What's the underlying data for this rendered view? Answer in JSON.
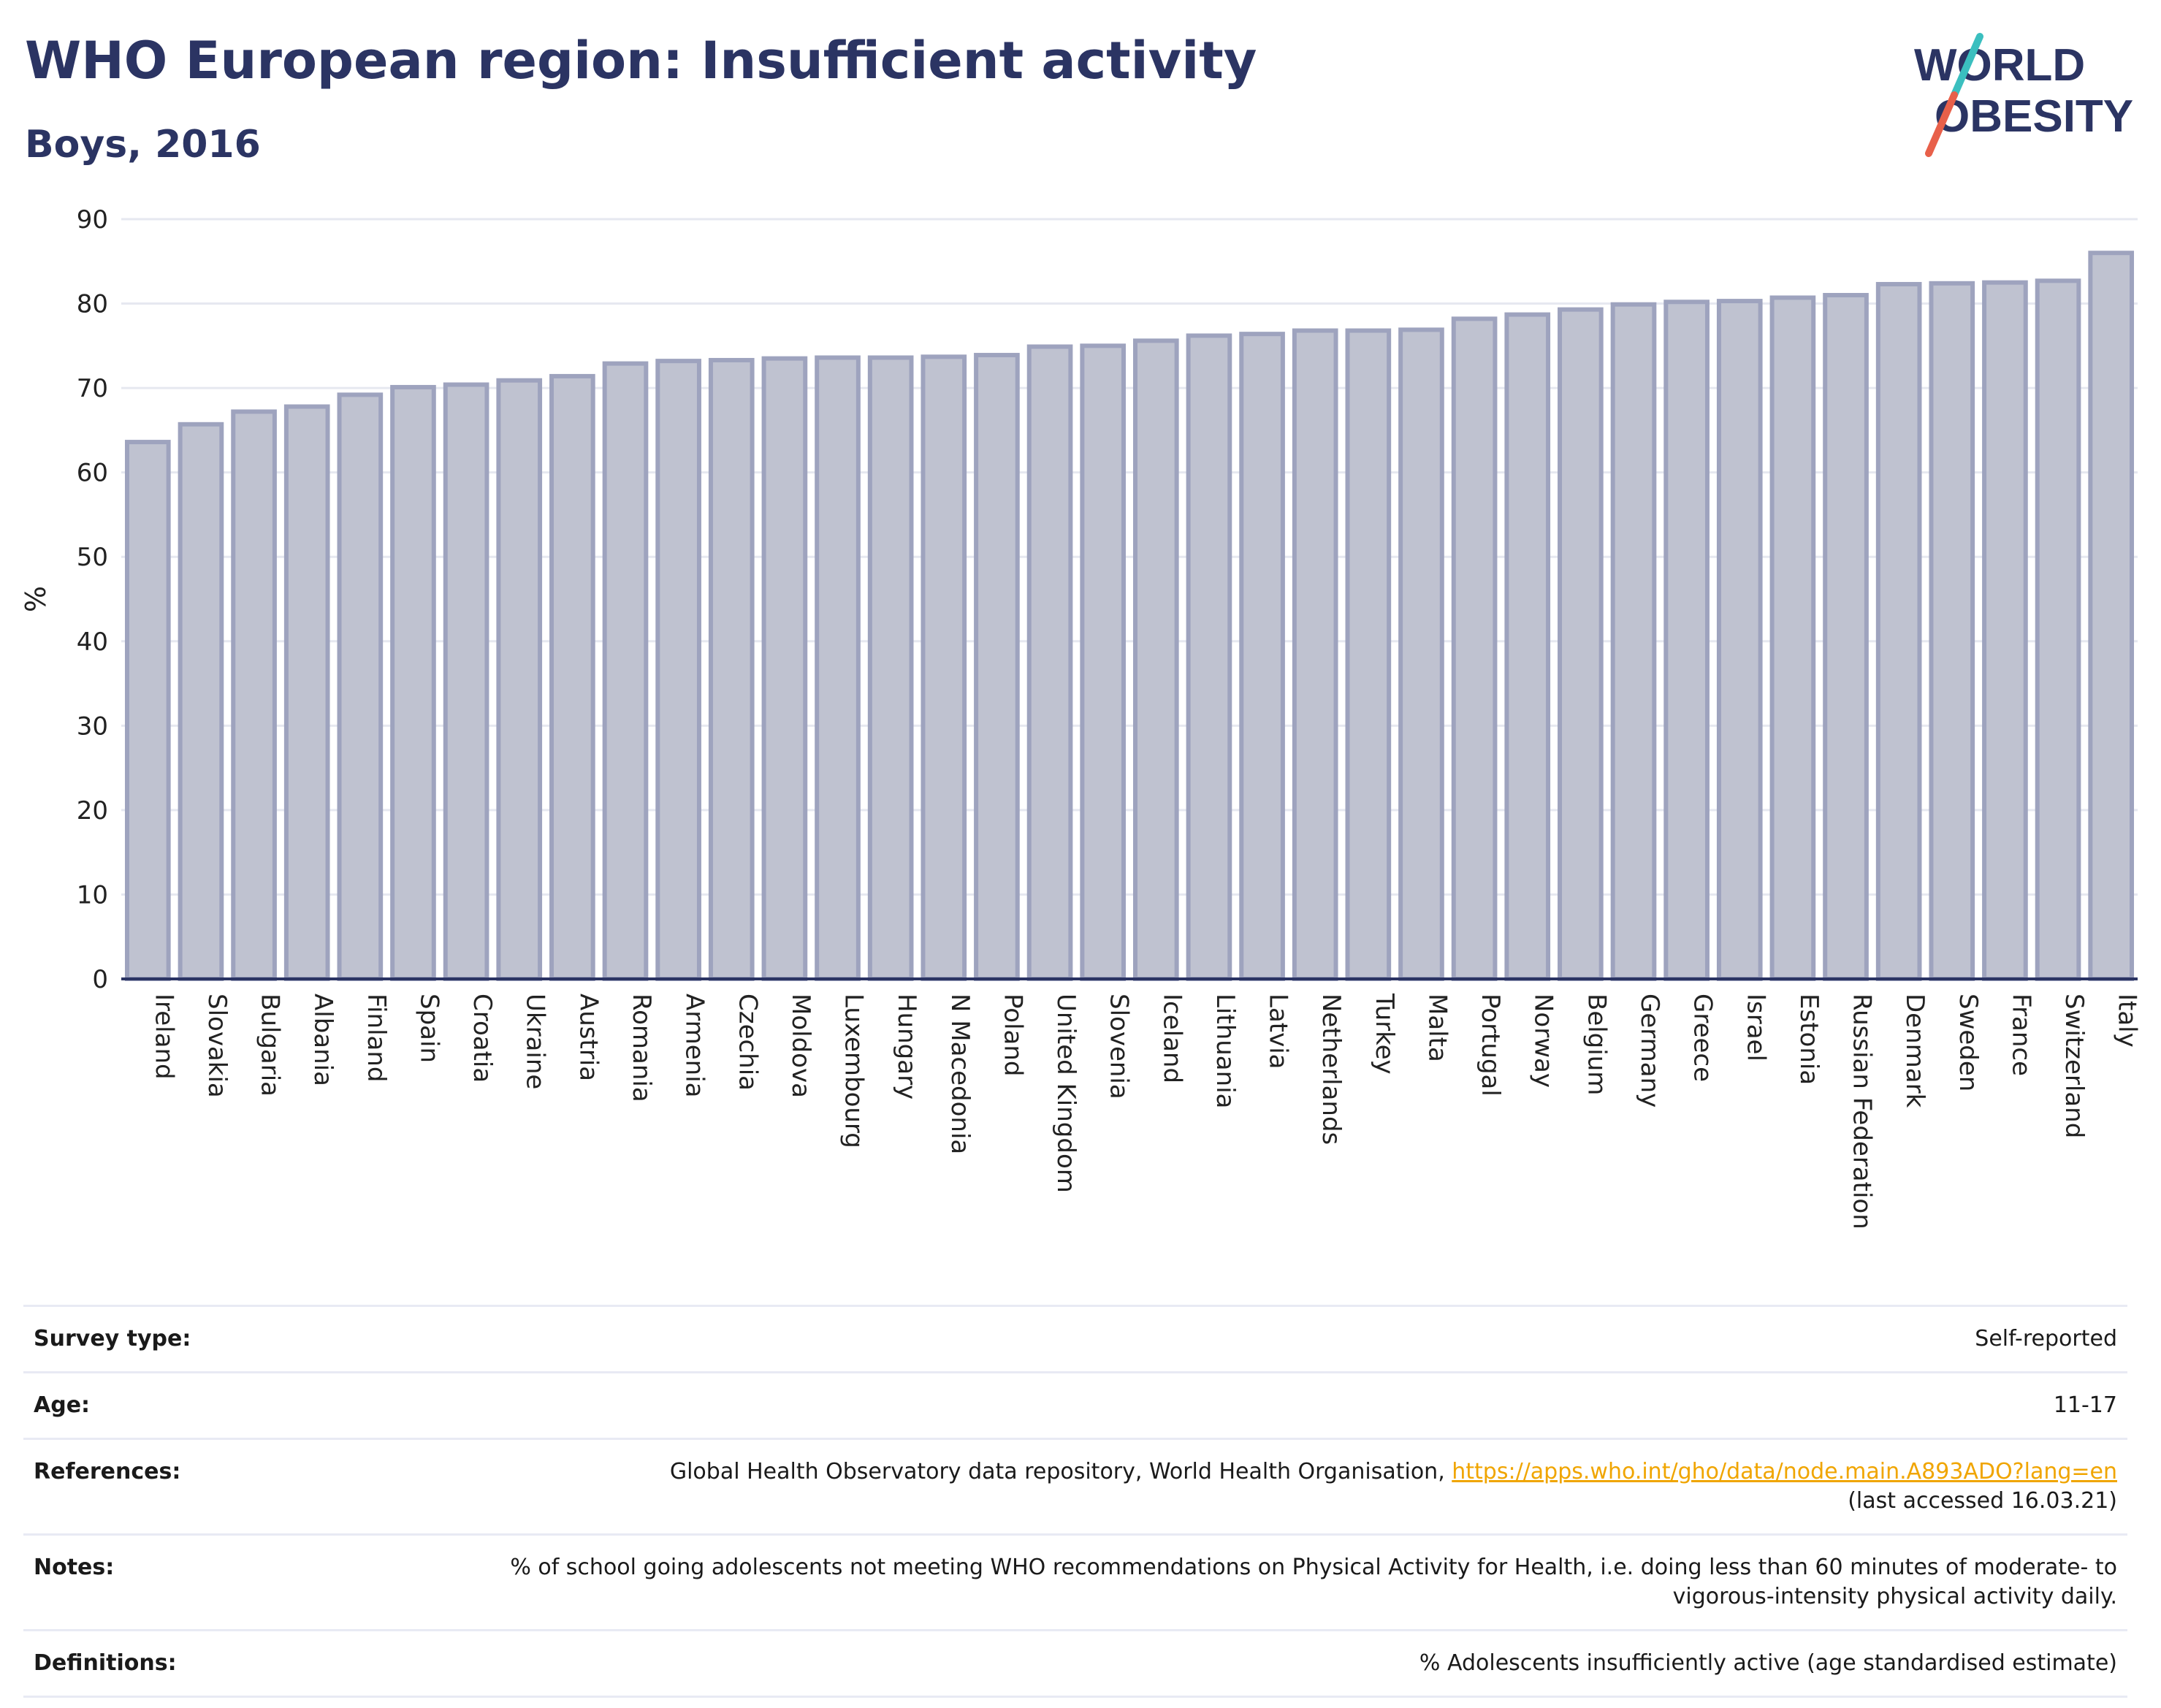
{
  "header": {
    "title": "WHO European region: Insufficient activity",
    "subtitle": "Boys, 2016"
  },
  "logo": {
    "line1": "WORLD",
    "line2": "OBESITY"
  },
  "colors": {
    "title": "#2b3463",
    "bar_fill": "#bfc2d0",
    "bar_stroke": "#9ea3be",
    "grid": "#e6e8f0",
    "link": "#f0a500",
    "logo_teal": "#3bbfbf",
    "logo_red": "#e8604a"
  },
  "chart_data": {
    "type": "bar",
    "title": "",
    "xlabel": "",
    "ylabel": "%",
    "ylim": [
      0,
      90
    ],
    "yticks": [
      0,
      10,
      20,
      30,
      40,
      50,
      60,
      70,
      80,
      90
    ],
    "grid": true,
    "categories": [
      "Ireland",
      "Slovakia",
      "Bulgaria",
      "Albania",
      "Finland",
      "Spain",
      "Croatia",
      "Ukraine",
      "Austria",
      "Romania",
      "Armenia",
      "Czechia",
      "Moldova",
      "Luxembourg",
      "Hungary",
      "N Macedonia",
      "Poland",
      "United Kingdom",
      "Slovenia",
      "Iceland",
      "Lithuania",
      "Latvia",
      "Netherlands",
      "Turkey",
      "Malta",
      "Portugal",
      "Norway",
      "Belgium",
      "Germany",
      "Greece",
      "Israel",
      "Estonia",
      "Russian Federation",
      "Denmark",
      "Sweden",
      "France",
      "Switzerland",
      "Italy"
    ],
    "values": [
      63.6,
      65.7,
      67.2,
      67.8,
      69.2,
      70.1,
      70.4,
      70.9,
      71.4,
      72.9,
      73.2,
      73.3,
      73.5,
      73.6,
      73.6,
      73.7,
      73.9,
      74.9,
      75.0,
      75.6,
      76.2,
      76.4,
      76.8,
      76.8,
      76.9,
      78.2,
      78.7,
      79.3,
      79.9,
      80.2,
      80.3,
      80.7,
      81.0,
      82.3,
      82.4,
      82.5,
      82.7,
      86.0
    ]
  },
  "info": [
    {
      "label": "Survey type:",
      "value": "Self-reported"
    },
    {
      "label": "Age:",
      "value": "11-17"
    },
    {
      "label": "References:",
      "value": "Global Health Observatory data repository, World Health Organisation, ",
      "link": "https://apps.who.int/gho/data/node.main.A893ADO?lang=en",
      "value2": "(last accessed 16.03.21)"
    },
    {
      "label": "Notes:",
      "value": "% of school going adolescents not meeting WHO recommendations on Physical Activity for Health, i.e. doing less than 60 minutes of moderate- to vigorous-intensity physical activity daily."
    },
    {
      "label": "Definitions:",
      "value": "% Adolescents insufficiently active (age standardised estimate)"
    }
  ]
}
